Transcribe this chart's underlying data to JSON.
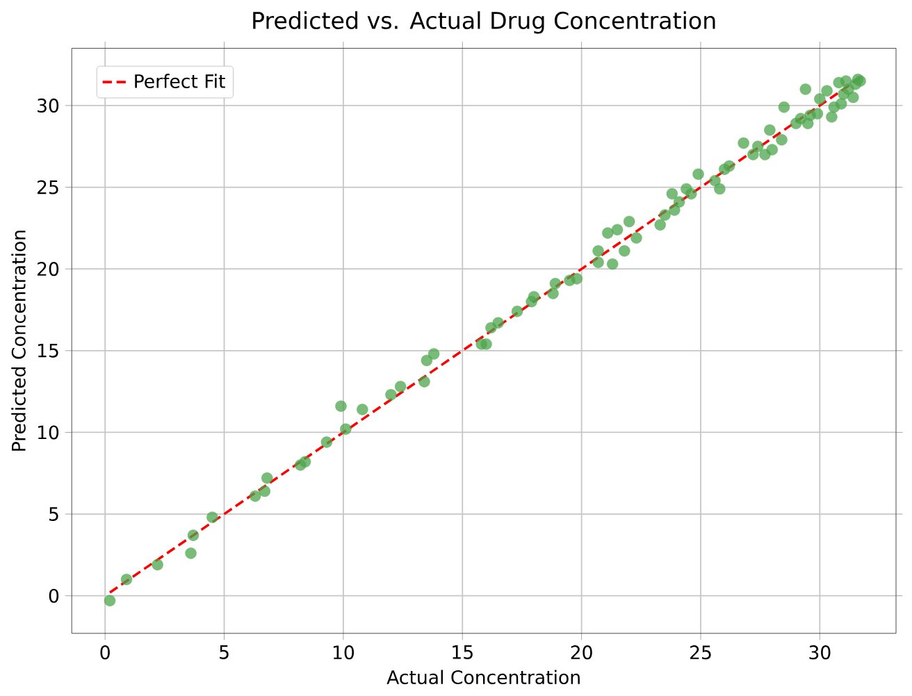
{
  "chart_data": {
    "type": "scatter",
    "title": "Predicted vs. Actual Drug Concentration",
    "xlabel": "Actual Concentration",
    "ylabel": "Predicted Concentration",
    "xlim": [
      -1.4,
      33.2
    ],
    "ylim": [
      -2.3,
      33.5
    ],
    "xticks": [
      0,
      5,
      10,
      15,
      20,
      25,
      30
    ],
    "yticks": [
      0,
      5,
      10,
      15,
      20,
      25,
      30
    ],
    "grid": true,
    "legend": "top left",
    "marker": "circle",
    "series": [
      {
        "color": "#4ca64c",
        "x": [
          0.2,
          0.9,
          2.2,
          3.6,
          3.7,
          4.5,
          6.3,
          6.7,
          6.8,
          8.2,
          8.4,
          9.3,
          9.9,
          10.1,
          10.8,
          12.0,
          12.4,
          13.4,
          13.5,
          13.8,
          15.8,
          16.0,
          16.2,
          16.5,
          17.3,
          17.9,
          18.0,
          18.8,
          18.9,
          19.5,
          19.8,
          20.7,
          20.7,
          21.1,
          21.3,
          21.5,
          21.8,
          22.0,
          22.3,
          23.3,
          23.5,
          23.8,
          23.9,
          24.1,
          24.4,
          24.6,
          24.9,
          25.6,
          25.8,
          26.0,
          26.2,
          26.8,
          27.2,
          27.4,
          27.7,
          27.9,
          28.0,
          28.4,
          28.5,
          29.0,
          29.2,
          29.4,
          29.5,
          29.6,
          29.9,
          30.0,
          30.3,
          30.5,
          30.6,
          30.8,
          30.9,
          31.0,
          31.2,
          31.4,
          31.5,
          31.6,
          31.7,
          31.1
        ],
        "values": [
          -0.3,
          1.0,
          1.9,
          2.6,
          3.7,
          4.8,
          6.1,
          6.4,
          7.2,
          8.0,
          8.2,
          9.4,
          11.6,
          10.2,
          11.4,
          12.3,
          12.8,
          13.1,
          14.4,
          14.8,
          15.4,
          15.4,
          16.4,
          16.7,
          17.4,
          18.0,
          18.3,
          18.5,
          19.1,
          19.3,
          19.4,
          20.4,
          21.1,
          22.2,
          20.3,
          22.4,
          21.1,
          22.9,
          21.9,
          22.7,
          23.3,
          24.6,
          23.6,
          24.1,
          24.9,
          24.6,
          25.8,
          25.4,
          24.9,
          26.1,
          26.3,
          27.7,
          27.0,
          27.5,
          27.0,
          28.5,
          27.3,
          27.9,
          29.9,
          28.9,
          29.2,
          31.0,
          28.9,
          29.4,
          29.5,
          30.4,
          30.9,
          29.3,
          29.9,
          31.4,
          30.1,
          30.7,
          31.0,
          30.5,
          31.3,
          31.6,
          31.5,
          31.5
        ]
      },
      {
        "type": "line",
        "name": "Perfect Fit",
        "color": "#ff0000",
        "line_style": "dashed",
        "marker": "none",
        "x": [
          0.2,
          31.7
        ],
        "values": [
          0.2,
          31.7
        ]
      }
    ]
  }
}
